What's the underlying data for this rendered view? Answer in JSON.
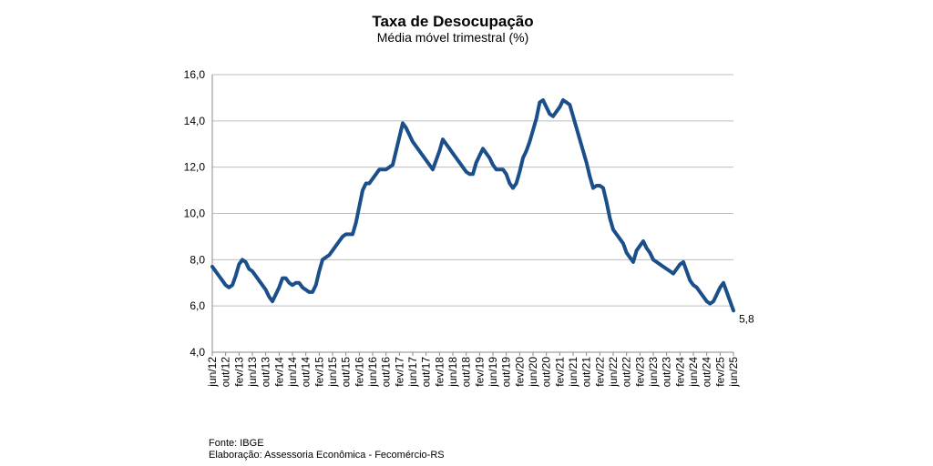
{
  "chart_data": {
    "type": "line",
    "title": "Taxa de Desocupação",
    "subtitle": "Média móvel trimestral (%)",
    "notes": [
      "Fonte: IBGE",
      "Elaboração: Assessoria Econômica - Fecomércio-RS"
    ],
    "categories": [
      "jun/12",
      null,
      null,
      null,
      "out/12",
      null,
      null,
      null,
      "fev/13",
      null,
      null,
      null,
      "jun/13",
      null,
      null,
      null,
      "out/13",
      null,
      null,
      null,
      "fev/14",
      null,
      null,
      null,
      "jun/14",
      null,
      null,
      null,
      "out/14",
      null,
      null,
      null,
      "fev/15",
      null,
      null,
      null,
      "jun/15",
      null,
      null,
      null,
      "out/15",
      null,
      null,
      null,
      "fev/16",
      null,
      null,
      null,
      "jun/16",
      null,
      null,
      null,
      "out/16",
      null,
      null,
      null,
      "fev/17",
      null,
      null,
      null,
      "jun/17",
      null,
      null,
      null,
      "out/17",
      null,
      null,
      null,
      "fev/18",
      null,
      null,
      null,
      "jun/18",
      null,
      null,
      null,
      "out/18",
      null,
      null,
      null,
      "fev/19",
      null,
      null,
      null,
      "jun/19",
      null,
      null,
      null,
      "out/19",
      null,
      null,
      null,
      "fev/20",
      null,
      null,
      null,
      "jun/20",
      null,
      null,
      null,
      "out/20",
      null,
      null,
      null,
      "fev/21",
      null,
      null,
      null,
      "jun/21",
      null,
      null,
      null,
      "out/21",
      null,
      null,
      null,
      "fev/22",
      null,
      null,
      null,
      "jun/22",
      null,
      null,
      null,
      "out/22",
      null,
      null,
      null,
      "fev/23",
      null,
      null,
      null,
      "jun/23",
      null,
      null,
      null,
      "out/23",
      null,
      null,
      null,
      "fev/24",
      null,
      null,
      null,
      "jun/24",
      null,
      null,
      null,
      "out/24",
      null,
      null,
      null,
      "fev/25",
      null,
      null,
      null,
      "jun/25"
    ],
    "series": [
      {
        "color": "#1b4f8a",
        "values": [
          7.7,
          7.5,
          7.3,
          7.1,
          6.9,
          6.8,
          6.9,
          7.3,
          7.8,
          8.0,
          7.9,
          7.6,
          7.5,
          7.3,
          7.1,
          6.9,
          6.7,
          6.4,
          6.2,
          6.5,
          6.8,
          7.2,
          7.2,
          7.0,
          6.9,
          7.0,
          7.0,
          6.8,
          6.7,
          6.6,
          6.6,
          6.9,
          7.5,
          8.0,
          8.1,
          8.2,
          8.4,
          8.6,
          8.8,
          9.0,
          9.1,
          9.1,
          9.1,
          9.6,
          10.3,
          11.0,
          11.3,
          11.3,
          11.5,
          11.7,
          11.9,
          11.9,
          11.9,
          12.0,
          12.1,
          12.7,
          13.3,
          13.9,
          13.7,
          13.4,
          13.1,
          12.9,
          12.7,
          12.5,
          12.3,
          12.1,
          11.9,
          12.3,
          12.7,
          13.2,
          13.0,
          12.8,
          12.6,
          12.4,
          12.2,
          12.0,
          11.8,
          11.7,
          11.7,
          12.2,
          12.5,
          12.8,
          12.6,
          12.4,
          12.1,
          11.9,
          11.9,
          11.9,
          11.7,
          11.3,
          11.1,
          11.3,
          11.8,
          12.4,
          12.7,
          13.1,
          13.6,
          14.1,
          14.8,
          14.9,
          14.6,
          14.3,
          14.2,
          14.4,
          14.6,
          14.9,
          14.8,
          14.7,
          14.2,
          13.7,
          13.2,
          12.7,
          12.2,
          11.6,
          11.1,
          11.2,
          11.2,
          11.1,
          10.5,
          9.8,
          9.3,
          9.1,
          8.9,
          8.7,
          8.3,
          8.1,
          7.9,
          8.4,
          8.6,
          8.8,
          8.5,
          8.3,
          8.0,
          7.9,
          7.8,
          7.7,
          7.6,
          7.5,
          7.4,
          7.6,
          7.8,
          7.9,
          7.5,
          7.1,
          6.9,
          6.8,
          6.6,
          6.4,
          6.2,
          6.1,
          6.2,
          6.5,
          6.8,
          7.0,
          6.6,
          6.2,
          5.8
        ],
        "value_labels": [
          null,
          null,
          null,
          null,
          null,
          null,
          null,
          null,
          null,
          null,
          null,
          null,
          null,
          null,
          null,
          null,
          null,
          null,
          null,
          null,
          null,
          null,
          null,
          null,
          null,
          null,
          null,
          null,
          null,
          null,
          null,
          null,
          null,
          null,
          null,
          null,
          null,
          null,
          null,
          null,
          null,
          null,
          null,
          null,
          null,
          null,
          null,
          null,
          null,
          null,
          null,
          null,
          null,
          null,
          null,
          null,
          null,
          null,
          null,
          null,
          null,
          null,
          null,
          null,
          null,
          null,
          null,
          null,
          null,
          null,
          null,
          null,
          null,
          null,
          null,
          null,
          null,
          null,
          null,
          null,
          null,
          null,
          null,
          null,
          null,
          null,
          null,
          null,
          null,
          null,
          null,
          null,
          null,
          null,
          null,
          null,
          null,
          null,
          null,
          null,
          null,
          null,
          null,
          null,
          null,
          null,
          null,
          null,
          null,
          null,
          null,
          null,
          null,
          null,
          null,
          null,
          null,
          null,
          null,
          null,
          null,
          null,
          null,
          null,
          null,
          null,
          null,
          null,
          null,
          null,
          null,
          null,
          null,
          null,
          null,
          null,
          null,
          null,
          null,
          null,
          null,
          null,
          null,
          null,
          null,
          null,
          null,
          null,
          null,
          null,
          null,
          null,
          null,
          null,
          null,
          null,
          "5,8"
        ]
      }
    ],
    "ylim": [
      4,
      16
    ],
    "yticks": [
      {
        "value": 4,
        "label": "4,0"
      },
      {
        "value": 6,
        "label": "6,0"
      },
      {
        "value": 8,
        "label": "8,0"
      },
      {
        "value": 10,
        "label": "10,0"
      },
      {
        "value": 12,
        "label": "12,0"
      },
      {
        "value": 14,
        "label": "14,0"
      },
      {
        "value": 16,
        "label": "16,0"
      }
    ],
    "grid": true
  }
}
